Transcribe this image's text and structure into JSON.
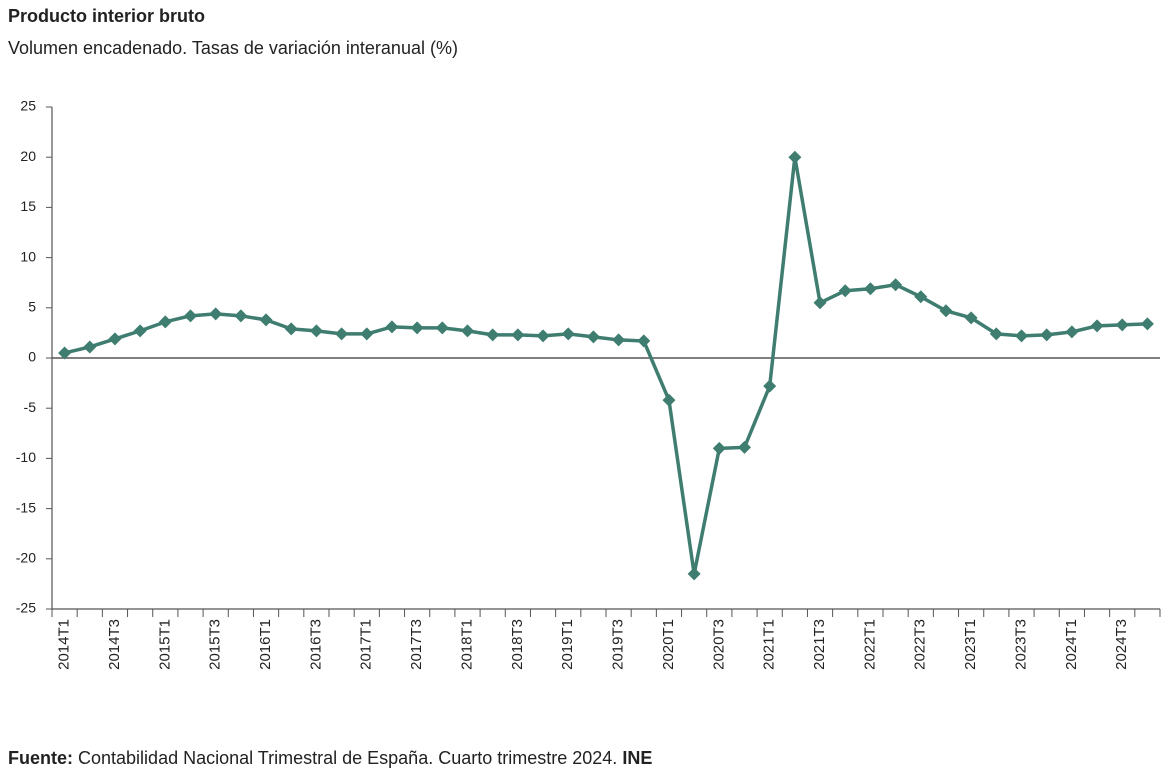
{
  "chart_data": {
    "type": "line",
    "title": "Producto interior bruto",
    "subtitle": "Volumen encadenado. Tasas de variación interanual (%)",
    "source_label": "Fuente:",
    "source_text": "Contabilidad Nacional Trimestral de España. Cuarto trimestre 2024.",
    "source_org": "INE",
    "categories": [
      "2014T1",
      null,
      "2014T3",
      null,
      "2015T1",
      null,
      "2015T3",
      null,
      "2016T1",
      null,
      "2016T3",
      null,
      "2017T1",
      null,
      "2017T3",
      null,
      "2018T1",
      null,
      "2018T3",
      null,
      "2019T1",
      null,
      "2019T3",
      null,
      "2020T1",
      null,
      "2020T3",
      null,
      "2021T1",
      null,
      "2021T3",
      null,
      "2022T1",
      null,
      "2022T3",
      null,
      "2023T1",
      null,
      "2023T3",
      null,
      "2024T1",
      null,
      "2024T3",
      null
    ],
    "values": [
      0.5,
      1.1,
      1.9,
      2.7,
      3.6,
      4.2,
      4.4,
      4.2,
      3.8,
      2.9,
      2.7,
      2.4,
      2.4,
      3.1,
      3.0,
      3.0,
      2.7,
      2.3,
      2.3,
      2.2,
      2.4,
      2.1,
      1.8,
      1.7,
      -4.2,
      -21.5,
      -9.0,
      -8.9,
      -2.8,
      20.0,
      5.5,
      6.7,
      6.9,
      7.3,
      6.1,
      4.7,
      4.0,
      2.4,
      2.2,
      2.3,
      2.6,
      3.2,
      3.3,
      3.4
    ],
    "color": "#3e7d70",
    "ylim": [
      -25,
      25
    ],
    "yticks": [
      -25,
      -20,
      -15,
      -10,
      -5,
      0,
      5,
      10,
      15,
      20,
      25
    ],
    "grid": false
  }
}
